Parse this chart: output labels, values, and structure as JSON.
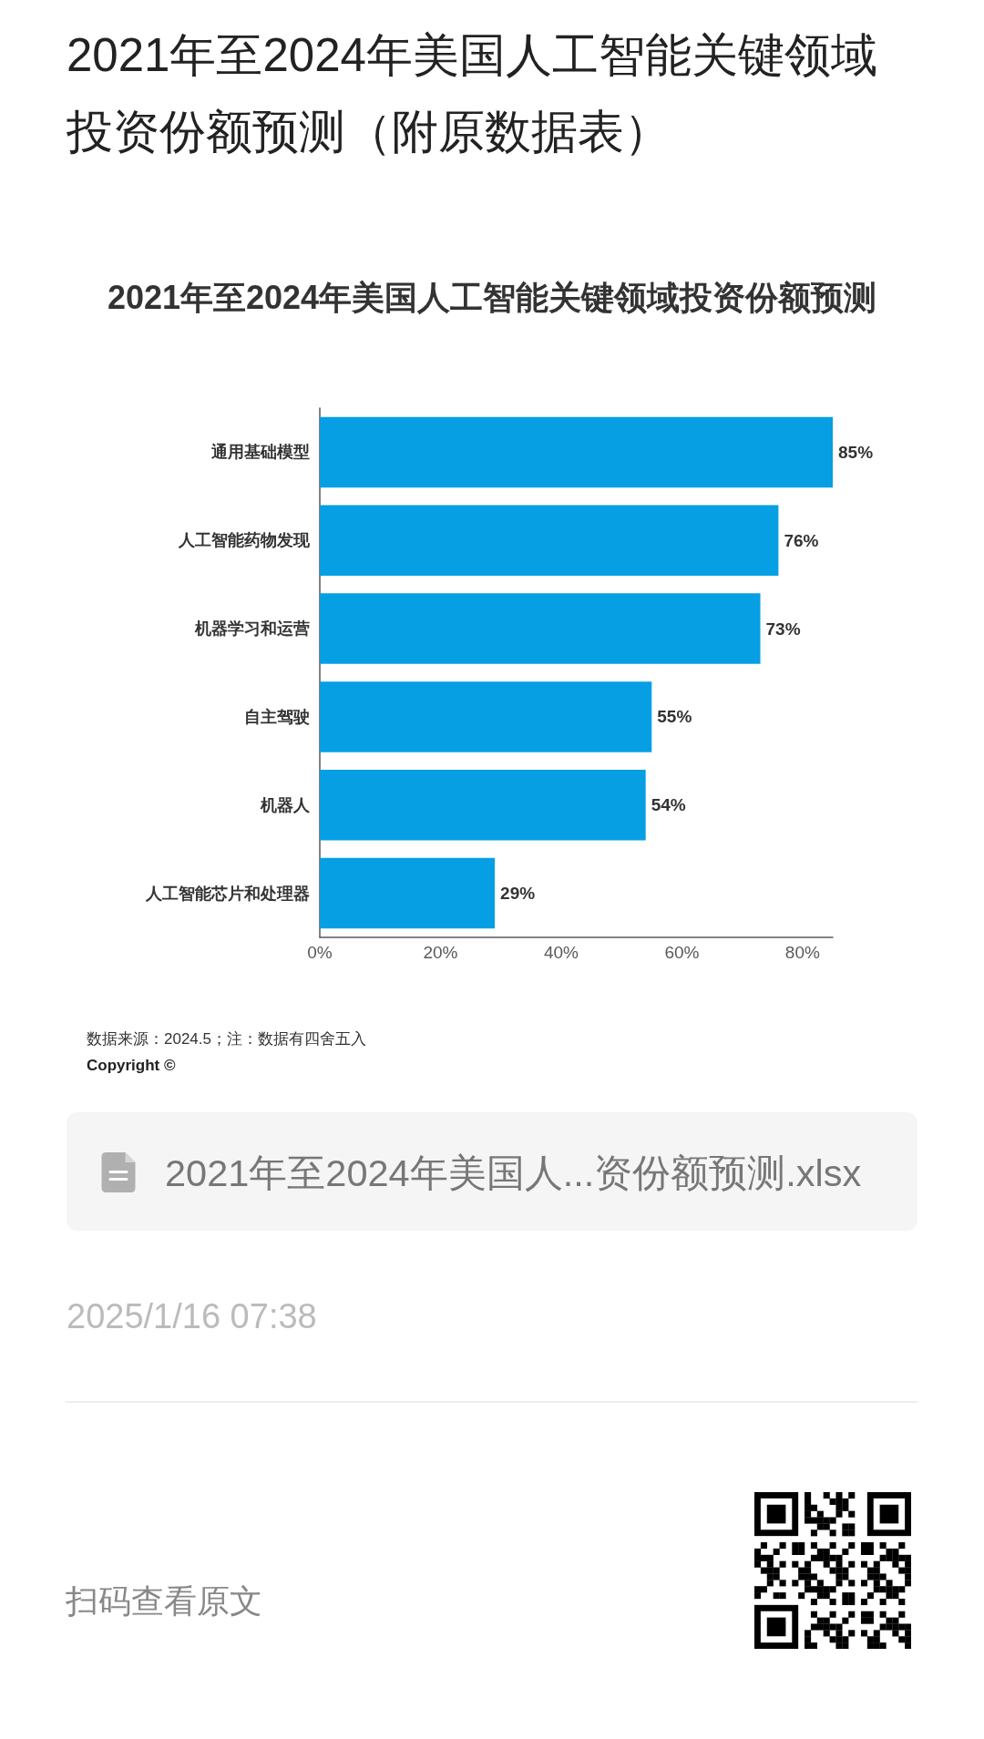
{
  "chart_data": {
    "type": "bar",
    "orientation": "horizontal",
    "title": "2021年至2024年美国人工智能关键领域投资份额预测（附原数据表）",
    "subtitle": "2021年至2024年美国人工智能关键领域投资份额预测",
    "categories": [
      "通用基础模型",
      "人工智能药物发现",
      "机器学习和运营",
      "自主驾驶",
      "机器人",
      "人工智能芯片和处理器"
    ],
    "values": [
      85,
      76,
      73,
      55,
      54,
      29
    ],
    "value_labels": [
      "85%",
      "76%",
      "73%",
      "55%",
      "54%",
      "29%"
    ],
    "color": "#079fe3",
    "xlim": [
      0,
      85
    ],
    "xticks": [
      {
        "value": 0,
        "label": "0%"
      },
      {
        "value": 20,
        "label": "20%"
      },
      {
        "value": 40,
        "label": "40%"
      },
      {
        "value": 60,
        "label": "60%"
      },
      {
        "value": 80,
        "label": "80%"
      }
    ],
    "annotations": [
      "数据来源：2024.5；注：数据有四舍五入",
      "Copyright ©",
      "2021年至2024年美国人...资份额预测.xlsx",
      "2025/1/16 07:38",
      "扫码查看原文"
    ]
  }
}
